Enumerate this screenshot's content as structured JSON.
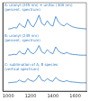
{
  "chart_data": {
    "type": "line",
    "x": [
      1000,
      1025,
      1050,
      1075,
      1100,
      1125,
      1150,
      1175,
      1200,
      1225,
      1250,
      1275,
      1300,
      1325,
      1350,
      1375,
      1400,
      1425,
      1450,
      1475,
      1500,
      1525,
      1550,
      1575,
      1600,
      1625,
      1650,
      1675,
      1700
    ],
    "series": [
      {
        "name": "A: uranyl (245 nm) + unifac (300 nm) (percent. spectrum)",
        "color": "#3a7fc1",
        "values": [
          2.25,
          2.26,
          2.3,
          2.28,
          2.45,
          2.35,
          2.3,
          2.6,
          2.4,
          2.32,
          2.5,
          2.75,
          2.45,
          2.38,
          2.55,
          2.4,
          2.35,
          2.7,
          2.5,
          2.4,
          2.36,
          2.45,
          2.38,
          2.33,
          2.3,
          2.28,
          2.27,
          2.26,
          2.25
        ]
      },
      {
        "name": "B: uranyl (245 nm) (percent. spectrum)",
        "color": "#3a7fc1",
        "values": [
          1.3,
          1.31,
          1.33,
          1.32,
          1.45,
          1.36,
          1.34,
          1.55,
          1.4,
          1.35,
          1.45,
          1.65,
          1.42,
          1.36,
          1.5,
          1.4,
          1.35,
          1.6,
          1.45,
          1.38,
          1.35,
          1.4,
          1.35,
          1.33,
          1.32,
          1.31,
          1.3,
          1.3,
          1.3
        ]
      },
      {
        "name": "C: sublimation of A, B species (vertical spectrum)",
        "color": "#3a7fc1",
        "values": [
          0.3,
          0.31,
          0.32,
          0.33,
          0.4,
          0.34,
          0.33,
          0.45,
          0.38,
          0.35,
          0.42,
          0.58,
          0.4,
          0.36,
          0.45,
          0.38,
          0.35,
          0.5,
          0.4,
          0.36,
          0.34,
          0.38,
          0.34,
          0.33,
          0.32,
          0.31,
          0.3,
          0.3,
          0.3
        ]
      }
    ],
    "xlim": [
      950,
      1700
    ],
    "xticks": [
      1000,
      1200,
      1400,
      1600
    ],
    "ylim": [
      0,
      3.2
    ],
    "tick_labels": "x",
    "grid": false
  }
}
